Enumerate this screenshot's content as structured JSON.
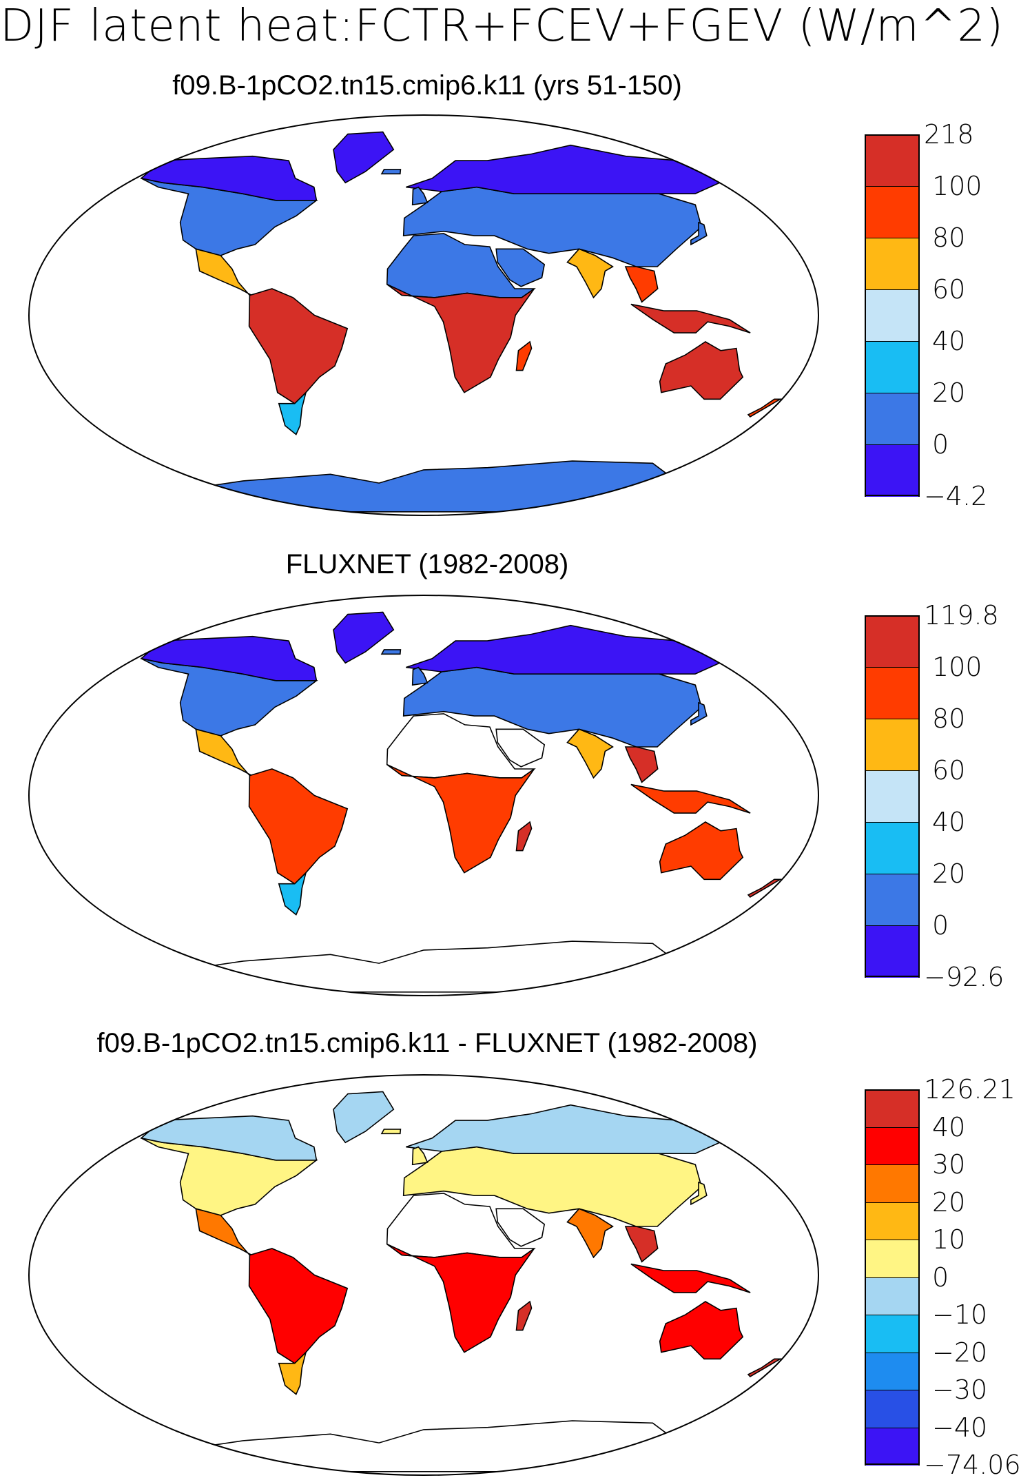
{
  "figure_title": "DJF latent heat:FCTR+FCEV+FGEV (W/m^2)",
  "panels": [
    {
      "title": "f09.B-1pCO2.tn15.cmip6.k11 (yrs 51-150)",
      "colorbar": {
        "labels": [
          "218",
          "100",
          "80",
          "60",
          "40",
          "20",
          "0",
          "-4.2"
        ],
        "colors": [
          "#d62f27",
          "#ff3c00",
          "#ffb814",
          "#c5e4f7",
          "#19bdf3",
          "#3c78e6",
          "#3c14f5"
        ]
      },
      "regions": {
        "boreal": "#3c14f5",
        "midlat": "#3c78e6",
        "subtrop": "#19bdf3",
        "transition": "#ffb814",
        "tropics": "#d62f27",
        "tropics_edge": "#ff3c00",
        "desert": "#3c78e6",
        "antarctica": "#3c78e6"
      }
    },
    {
      "title": "FLUXNET (1982-2008)",
      "colorbar": {
        "labels": [
          "119.8",
          "100",
          "80",
          "60",
          "40",
          "20",
          "0",
          "-92.6"
        ],
        "colors": [
          "#d62f27",
          "#ff3c00",
          "#ffb814",
          "#c5e4f7",
          "#19bdf3",
          "#3c78e6",
          "#3c14f5"
        ]
      },
      "regions": {
        "boreal": "#3c14f5",
        "midlat": "#3c78e6",
        "subtrop": "#19bdf3",
        "transition": "#ffb814",
        "tropics": "#ff3c00",
        "tropics_edge": "#d62f27",
        "desert": "#ffffff",
        "antarctica": "#ffffff"
      }
    },
    {
      "title": "f09.B-1pCO2.tn15.cmip6.k11 - FLUXNET (1982-2008)",
      "colorbar": {
        "labels": [
          "126.21",
          "40",
          "30",
          "20",
          "10",
          "0",
          "-10",
          "-20",
          "-30",
          "-40",
          "-74.06"
        ],
        "colors": [
          "#d62f27",
          "#ff0000",
          "#ff7800",
          "#ffb814",
          "#fff584",
          "#a5d6f2",
          "#19bdf3",
          "#1e8cf0",
          "#2850e6",
          "#3c14f5"
        ]
      },
      "regions": {
        "boreal": "#a5d6f2",
        "midlat": "#fff584",
        "subtrop": "#ffb814",
        "transition": "#ff7800",
        "tropics": "#ff0000",
        "tropics_edge": "#d62f27",
        "desert": "#ffffff",
        "antarctica": "#ffffff"
      }
    }
  ]
}
